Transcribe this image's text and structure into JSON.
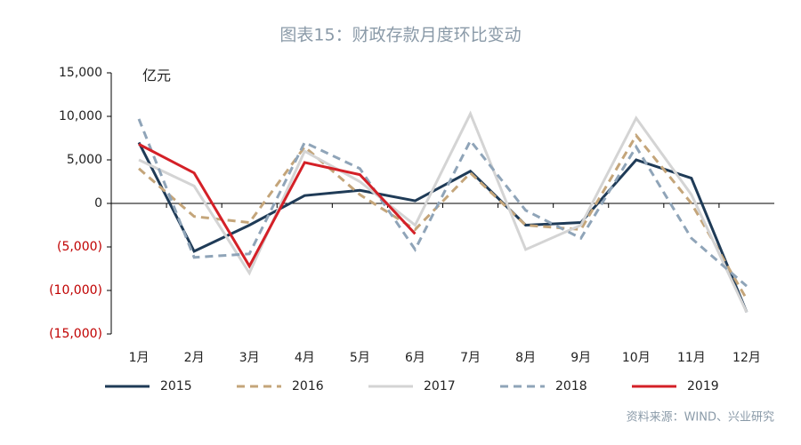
{
  "chart_data": {
    "type": "line",
    "title": "图表15：财政存款月度环比变动",
    "unit_label": "亿元",
    "source": "资料来源：WIND、兴业研究",
    "categories": [
      "1月",
      "2月",
      "3月",
      "4月",
      "5月",
      "6月",
      "7月",
      "8月",
      "9月",
      "10月",
      "11月",
      "12月"
    ],
    "series": [
      {
        "name": "2015",
        "color": "#1f3b57",
        "dash": "solid",
        "values": [
          7000,
          -5500,
          -2500,
          900,
          1500,
          300,
          3700,
          -2500,
          -2200,
          5000,
          2900,
          -12500
        ]
      },
      {
        "name": "2016",
        "color": "#c4a57a",
        "dash": "dashed",
        "values": [
          4000,
          -1500,
          -2200,
          6500,
          1000,
          -3000,
          3500,
          -2500,
          -3000,
          7800,
          0,
          -11000
        ]
      },
      {
        "name": "2017",
        "color": "#d4d4d4",
        "dash": "solid",
        "values": [
          5000,
          2000,
          -8000,
          6000,
          2500,
          -2500,
          10300,
          -5300,
          -2500,
          9800,
          1000,
          -12500
        ]
      },
      {
        "name": "2018",
        "color": "#8fa4b8",
        "dash": "dashed",
        "values": [
          9700,
          -6200,
          -5800,
          7000,
          4000,
          -5300,
          7200,
          -800,
          -4000,
          6500,
          -4000,
          -9500
        ]
      },
      {
        "name": "2019",
        "color": "#d42027",
        "dash": "solid",
        "values": [
          6800,
          3500,
          -7200,
          4700,
          3300,
          -3500,
          null,
          null,
          null,
          null,
          null,
          null
        ]
      }
    ],
    "ylim": [
      -15000,
      15000
    ],
    "yticks": [
      {
        "value": 15000,
        "label": "15,000"
      },
      {
        "value": 10000,
        "label": "10,000"
      },
      {
        "value": 5000,
        "label": "5,000"
      },
      0,
      {
        "value": -5000,
        "label": "(5,000)"
      },
      {
        "value": -10000,
        "label": "(10,000)"
      },
      {
        "value": -15000,
        "label": "(15,000)"
      }
    ],
    "legend": "bottom"
  }
}
